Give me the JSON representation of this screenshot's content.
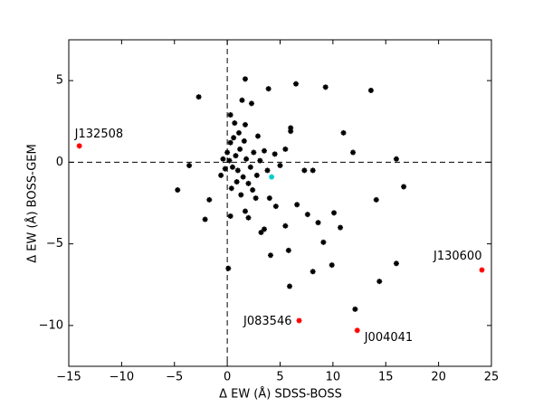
{
  "chart_data": {
    "type": "scatter",
    "x_label": "Δ EW (Å) SDSS-BOSS",
    "y_label": "Δ EW (Å) BOSS-GEM",
    "xlim": [
      -15,
      25
    ],
    "ylim": [
      -12.5,
      7.5
    ],
    "xticks": [
      {
        "value": -15,
        "label": "−15"
      },
      {
        "value": -10,
        "label": "−10"
      },
      {
        "value": -5,
        "label": "−5"
      },
      0,
      5,
      10,
      15,
      20,
      25
    ],
    "yticks": [
      {
        "value": -10,
        "label": "−10"
      },
      {
        "value": -5,
        "label": "−5"
      },
      0,
      5
    ],
    "hlines": [
      0
    ],
    "vlines": [
      0
    ],
    "series": [
      {
        "color": "#000000",
        "x": [
          -2.7,
          1.7,
          3.9,
          6.5,
          9.3,
          13.6,
          1.4,
          2.3,
          0.3,
          6.0,
          6.0,
          11.0,
          11.9,
          16.0,
          7.3,
          8.1,
          16.7,
          14.1,
          -4.7,
          -3.6,
          -1.7,
          -2.1,
          0.3,
          3.2,
          3.5,
          5.5,
          5.8,
          4.1,
          6.6,
          7.6,
          8.6,
          10.1,
          10.7,
          9.1,
          9.9,
          8.1,
          16.0,
          14.4,
          5.9,
          0.1,
          12.1,
          1.7,
          2.7,
          2.0,
          4.6,
          4.0,
          0.2,
          0.5,
          0.8,
          1.0,
          1.2,
          0.3,
          -0.4,
          -0.2,
          1.5,
          1.8,
          2.2,
          2.5,
          2.8,
          3.1,
          3.5,
          0.6,
          1.1,
          1.6,
          2.0,
          2.4,
          0.9,
          0.4,
          1.3,
          3.8,
          4.5,
          5.0,
          5.5,
          2.9,
          0.0,
          -0.6,
          1.7,
          0.7
        ],
        "y": [
          4.0,
          5.1,
          4.5,
          4.8,
          4.6,
          4.4,
          3.8,
          3.6,
          2.9,
          2.1,
          1.9,
          1.8,
          0.6,
          0.2,
          -0.5,
          -0.5,
          -1.5,
          -2.3,
          -1.7,
          -0.2,
          -2.3,
          -3.5,
          -3.3,
          -4.3,
          -4.1,
          -3.9,
          -5.4,
          -5.7,
          -2.6,
          -3.2,
          -3.7,
          -3.1,
          -4.0,
          -4.9,
          -6.3,
          -6.7,
          -6.2,
          -7.3,
          -7.6,
          -6.5,
          -9.0,
          -3.0,
          -2.2,
          -3.4,
          -2.7,
          -2.2,
          0.1,
          -0.3,
          0.4,
          -0.5,
          0.8,
          1.2,
          0.2,
          -0.4,
          -0.9,
          0.2,
          -0.3,
          0.6,
          -0.8,
          0.1,
          0.7,
          1.5,
          1.8,
          1.3,
          -1.3,
          -1.7,
          -1.2,
          -1.6,
          -2.0,
          -0.5,
          0.5,
          -0.2,
          0.8,
          1.6,
          0.6,
          -0.8,
          2.3,
          2.4
        ]
      },
      {
        "color": "#ff0000",
        "x": [
          -14.0,
          6.8,
          12.3,
          24.1
        ],
        "y": [
          1.0,
          -9.7,
          -10.3,
          -6.6
        ],
        "point_labels": [
          "J132508",
          "J083546",
          "J004041",
          "J130600"
        ]
      },
      {
        "color": "#00cccc",
        "x": [
          4.2
        ],
        "y": [
          -0.9
        ]
      }
    ]
  }
}
